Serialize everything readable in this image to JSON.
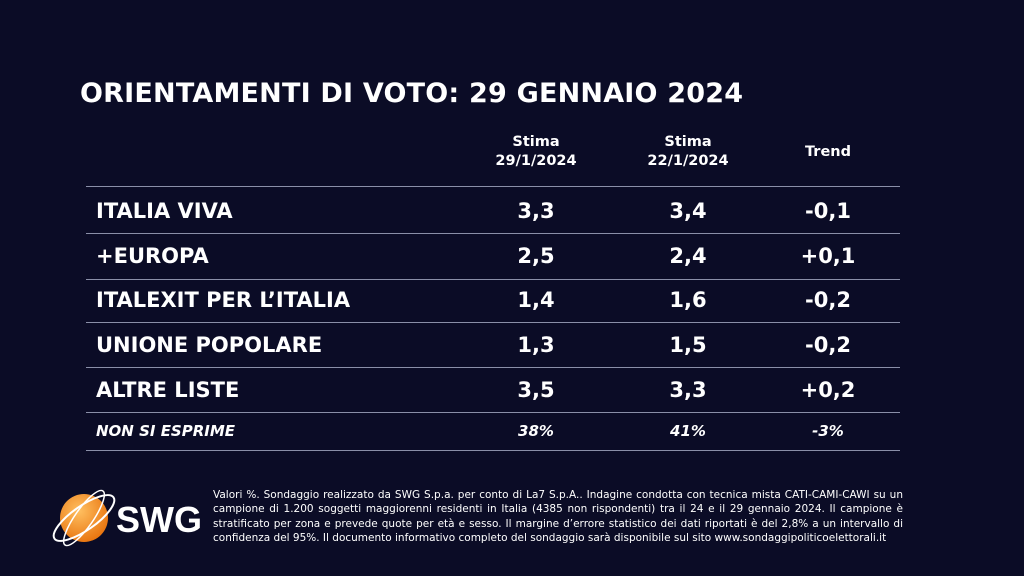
{
  "title": "ORIENTAMENTI DI VOTO: 29 GENNAIO 2024",
  "columns": [
    {
      "line1": "Stima",
      "line2": "29/1/2024"
    },
    {
      "line1": "Stima",
      "line2": "22/1/2024"
    },
    {
      "line1": "",
      "line2": "Trend"
    }
  ],
  "rows": [
    {
      "name": "ITALIA VIVA",
      "current": "3,3",
      "previous": "3,4",
      "trend": "-0,1"
    },
    {
      "name": "+EUROPA",
      "current": "2,5",
      "previous": "2,4",
      "trend": "+0,1"
    },
    {
      "name": "ITALEXIT PER L’ITALIA",
      "current": "1,4",
      "previous": "1,6",
      "trend": "-0,2"
    },
    {
      "name": "UNIONE POPOLARE",
      "current": "1,3",
      "previous": "1,5",
      "trend": "-0,2"
    },
    {
      "name": "ALTRE LISTE",
      "current": "3,5",
      "previous": "3,3",
      "trend": "+0,2"
    },
    {
      "name": "NON SI ESPRIME",
      "current": "38%",
      "previous": "41%",
      "trend": "-3%"
    }
  ],
  "logo": {
    "text": "SWG",
    "color": "#f7931e"
  },
  "footnote": "Valori %. Sondaggio realizzato da SWG S.p.a. per conto di La7 S.p.A.. Indagine condotta con tecnica mista CATI-CAMI-CAWI su un campione di 1.200 soggetti maggiorenni residenti in Italia (4385 non rispondenti) tra il 24 e il 29 gennaio 2024. Il campione è stratificato per zona e prevede quote per età e sesso. Il margine d’errore statistico dei dati riportati è del 2,8% a un intervallo di confidenza del 95%. Il documento informativo completo del sondaggio sarà disponibile sul sito www.sondaggipoliticoelettorali.it"
}
